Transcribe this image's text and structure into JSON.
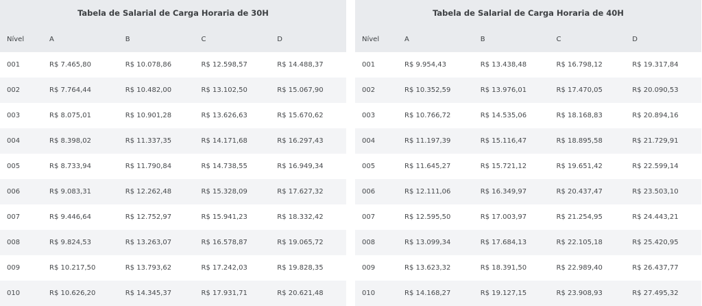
{
  "tables": [
    {
      "title": "Tabela de Salarial de Carga Horaria de 30H",
      "headers": [
        "Nível",
        "A",
        "B",
        "C",
        "D"
      ],
      "rows": [
        [
          "001",
          "R$ 7.465,80",
          "R$ 10.078,86",
          "R$ 12.598,57",
          "R$ 14.488,37"
        ],
        [
          "002",
          "R$ 7.764,44",
          "R$ 10.482,00",
          "R$ 13.102,50",
          "R$ 15.067,90"
        ],
        [
          "003",
          "R$ 8.075,01",
          "R$ 10.901,28",
          "R$ 13.626,63",
          "R$ 15.670,62"
        ],
        [
          "004",
          "R$ 8.398,02",
          "R$ 11.337,35",
          "R$ 14.171,68",
          "R$ 16.297,43"
        ],
        [
          "005",
          "R$ 8.733,94",
          "R$ 11.790,84",
          "R$ 14.738,55",
          "R$ 16.949,34"
        ],
        [
          "006",
          "R$ 9.083,31",
          "R$ 12.262,48",
          "R$ 15.328,09",
          "R$ 17.627,32"
        ],
        [
          "007",
          "R$ 9.446,64",
          "R$ 12.752,97",
          "R$ 15.941,23",
          "R$ 18.332,42"
        ],
        [
          "008",
          "R$ 9.824,53",
          "R$ 13.263,07",
          "R$ 16.578,87",
          "R$ 19.065,72"
        ],
        [
          "009",
          "R$ 10.217,50",
          "R$ 13.793,62",
          "R$ 17.242,03",
          "R$ 19.828,35"
        ],
        [
          "010",
          "R$ 10.626,20",
          "R$ 14.345,37",
          "R$ 17.931,71",
          "R$ 20.621,48"
        ]
      ]
    },
    {
      "title": "Tabela de Salarial de Carga Horaria de 40H",
      "headers": [
        "Nível",
        "A",
        "B",
        "C",
        "D"
      ],
      "rows": [
        [
          "001",
          "R$ 9.954,43",
          "R$ 13.438,48",
          "R$ 16.798,12",
          "R$ 19.317,84"
        ],
        [
          "002",
          "R$ 10.352,59",
          "R$ 13.976,01",
          "R$ 17.470,05",
          "R$ 20.090,53"
        ],
        [
          "003",
          "R$ 10.766,72",
          "R$ 14.535,06",
          "R$ 18.168,83",
          "R$ 20.894,16"
        ],
        [
          "004",
          "R$ 11.197,39",
          "R$ 15.116,47",
          "R$ 18.895,58",
          "R$ 21.729,91"
        ],
        [
          "005",
          "R$ 11.645,27",
          "R$ 15.721,12",
          "R$ 19.651,42",
          "R$ 22.599,14"
        ],
        [
          "006",
          "R$ 12.111,06",
          "R$ 16.349,97",
          "R$ 20.437,47",
          "R$ 23.503,10"
        ],
        [
          "007",
          "R$ 12.595,50",
          "R$ 17.003,97",
          "R$ 21.254,95",
          "R$ 24.443,21"
        ],
        [
          "008",
          "R$ 13.099,34",
          "R$ 17.684,13",
          "R$ 22.105,18",
          "R$ 25.420,95"
        ],
        [
          "009",
          "R$ 13.623,32",
          "R$ 18.391,50",
          "R$ 22.989,40",
          "R$ 26.437,77"
        ],
        [
          "010",
          "R$ 14.168,27",
          "R$ 19.127,15",
          "R$ 23.908,93",
          "R$ 27.495,32"
        ]
      ]
    }
  ],
  "colors": {
    "header_bg": "#e9ebee",
    "row_alt_bg": "#f3f4f6",
    "row_bg": "#ffffff",
    "text": "#3d4043"
  }
}
